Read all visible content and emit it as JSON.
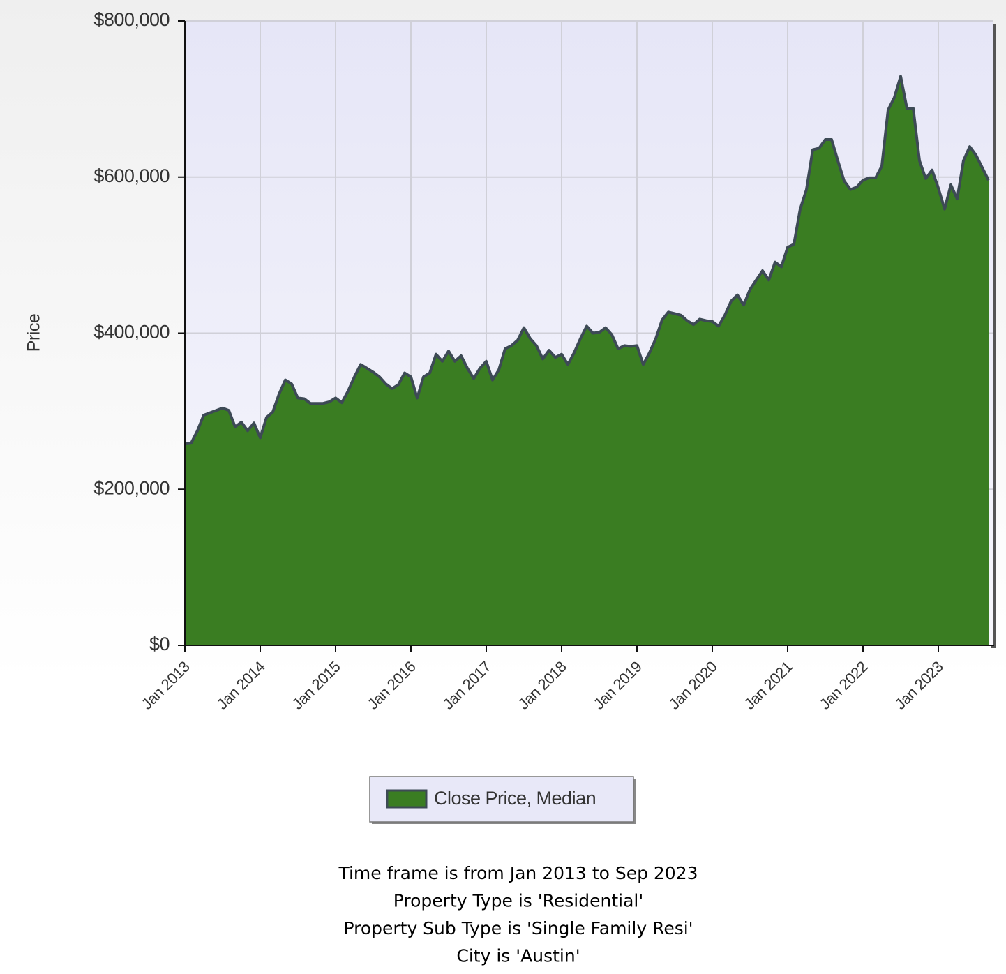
{
  "chart_data": {
    "type": "area",
    "ylabel": "Price",
    "x": [
      "2013-01",
      "2013-02",
      "2013-03",
      "2013-04",
      "2013-05",
      "2013-06",
      "2013-07",
      "2013-08",
      "2013-09",
      "2013-10",
      "2013-11",
      "2013-12",
      "2014-01",
      "2014-02",
      "2014-03",
      "2014-04",
      "2014-05",
      "2014-06",
      "2014-07",
      "2014-08",
      "2014-09",
      "2014-10",
      "2014-11",
      "2014-12",
      "2015-01",
      "2015-02",
      "2015-03",
      "2015-04",
      "2015-05",
      "2015-06",
      "2015-07",
      "2015-08",
      "2015-09",
      "2015-10",
      "2015-11",
      "2015-12",
      "2016-01",
      "2016-02",
      "2016-03",
      "2016-04",
      "2016-05",
      "2016-06",
      "2016-07",
      "2016-08",
      "2016-09",
      "2016-10",
      "2016-11",
      "2016-12",
      "2017-01",
      "2017-02",
      "2017-03",
      "2017-04",
      "2017-05",
      "2017-06",
      "2017-07",
      "2017-08",
      "2017-09",
      "2017-10",
      "2017-11",
      "2017-12",
      "2018-01",
      "2018-02",
      "2018-03",
      "2018-04",
      "2018-05",
      "2018-06",
      "2018-07",
      "2018-08",
      "2018-09",
      "2018-10",
      "2018-11",
      "2018-12",
      "2019-01",
      "2019-02",
      "2019-03",
      "2019-04",
      "2019-05",
      "2019-06",
      "2019-07",
      "2019-08",
      "2019-09",
      "2019-10",
      "2019-11",
      "2019-12",
      "2020-01",
      "2020-02",
      "2020-03",
      "2020-04",
      "2020-05",
      "2020-06",
      "2020-07",
      "2020-08",
      "2020-09",
      "2020-10",
      "2020-11",
      "2020-12",
      "2021-01",
      "2021-02",
      "2021-03",
      "2021-04",
      "2021-05",
      "2021-06",
      "2021-07",
      "2021-08",
      "2021-09",
      "2021-10",
      "2021-11",
      "2021-12",
      "2022-01",
      "2022-02",
      "2022-03",
      "2022-04",
      "2022-05",
      "2022-06",
      "2022-07",
      "2022-08",
      "2022-09",
      "2022-10",
      "2022-11",
      "2022-12",
      "2023-01",
      "2023-02",
      "2023-03",
      "2023-04",
      "2023-05",
      "2023-06",
      "2023-07",
      "2023-08",
      "2023-09"
    ],
    "series": [
      {
        "name": "Close Price, Median",
        "color": "#3a7d22",
        "values": [
          258000,
          259000,
          275000,
          295000,
          298000,
          301000,
          304000,
          301000,
          280000,
          286000,
          275000,
          285000,
          266000,
          292000,
          299000,
          322000,
          340000,
          335000,
          317000,
          316000,
          310000,
          310000,
          310000,
          312000,
          317000,
          311000,
          326000,
          344000,
          360000,
          355000,
          350000,
          344000,
          335000,
          329000,
          334000,
          349000,
          344000,
          317000,
          344000,
          349000,
          373000,
          364000,
          377000,
          364000,
          371000,
          355000,
          342000,
          355000,
          364000,
          340000,
          353000,
          380000,
          384000,
          391000,
          407000,
          393000,
          384000,
          367000,
          378000,
          369000,
          373000,
          360000,
          375000,
          393000,
          409000,
          400000,
          401000,
          407000,
          398000,
          380000,
          384000,
          383000,
          384000,
          360000,
          375000,
          393000,
          417000,
          427000,
          425000,
          423000,
          416000,
          411000,
          418000,
          416000,
          415000,
          409000,
          423000,
          441000,
          449000,
          436000,
          456000,
          468000,
          480000,
          468000,
          491000,
          485000,
          510000,
          514000,
          559000,
          584000,
          635000,
          637000,
          648000,
          648000,
          621000,
          595000,
          584000,
          587000,
          596000,
          599000,
          599000,
          614000,
          686000,
          702000,
          729000,
          688000,
          688000,
          621000,
          598000,
          609000,
          586000,
          559000,
          590000,
          572000,
          621000,
          639000,
          628000,
          612000,
          596000
        ]
      }
    ],
    "xlim": [
      "2013-01",
      "2023-09"
    ],
    "xticks": [
      {
        "value": "2013-01",
        "label": "Jan 2013"
      },
      {
        "value": "2014-01",
        "label": "Jan 2014"
      },
      {
        "value": "2015-01",
        "label": "Jan 2015"
      },
      {
        "value": "2016-01",
        "label": "Jan 2016"
      },
      {
        "value": "2017-01",
        "label": "Jan 2017"
      },
      {
        "value": "2018-01",
        "label": "Jan 2018"
      },
      {
        "value": "2019-01",
        "label": "Jan 2019"
      },
      {
        "value": "2020-01",
        "label": "Jan 2020"
      },
      {
        "value": "2021-01",
        "label": "Jan 2021"
      },
      {
        "value": "2022-01",
        "label": "Jan 2022"
      },
      {
        "value": "2023-01",
        "label": "Jan 2023"
      }
    ],
    "ylim": [
      0,
      800000
    ],
    "yticks": [
      {
        "value": 0,
        "label": "$0"
      },
      {
        "value": 200000,
        "label": "$200,000"
      },
      {
        "value": 400000,
        "label": "$400,000"
      },
      {
        "value": 600000,
        "label": "$600,000"
      },
      {
        "value": 800000,
        "label": "$800,000"
      }
    ],
    "grid": true,
    "legend": "bottom",
    "footnotes": [
      "Time frame is from Jan 2013 to Sep 2023",
      "Property Type is 'Residential'",
      "Property Sub Type is 'Single Family Resi'",
      "City is 'Austin'"
    ]
  }
}
